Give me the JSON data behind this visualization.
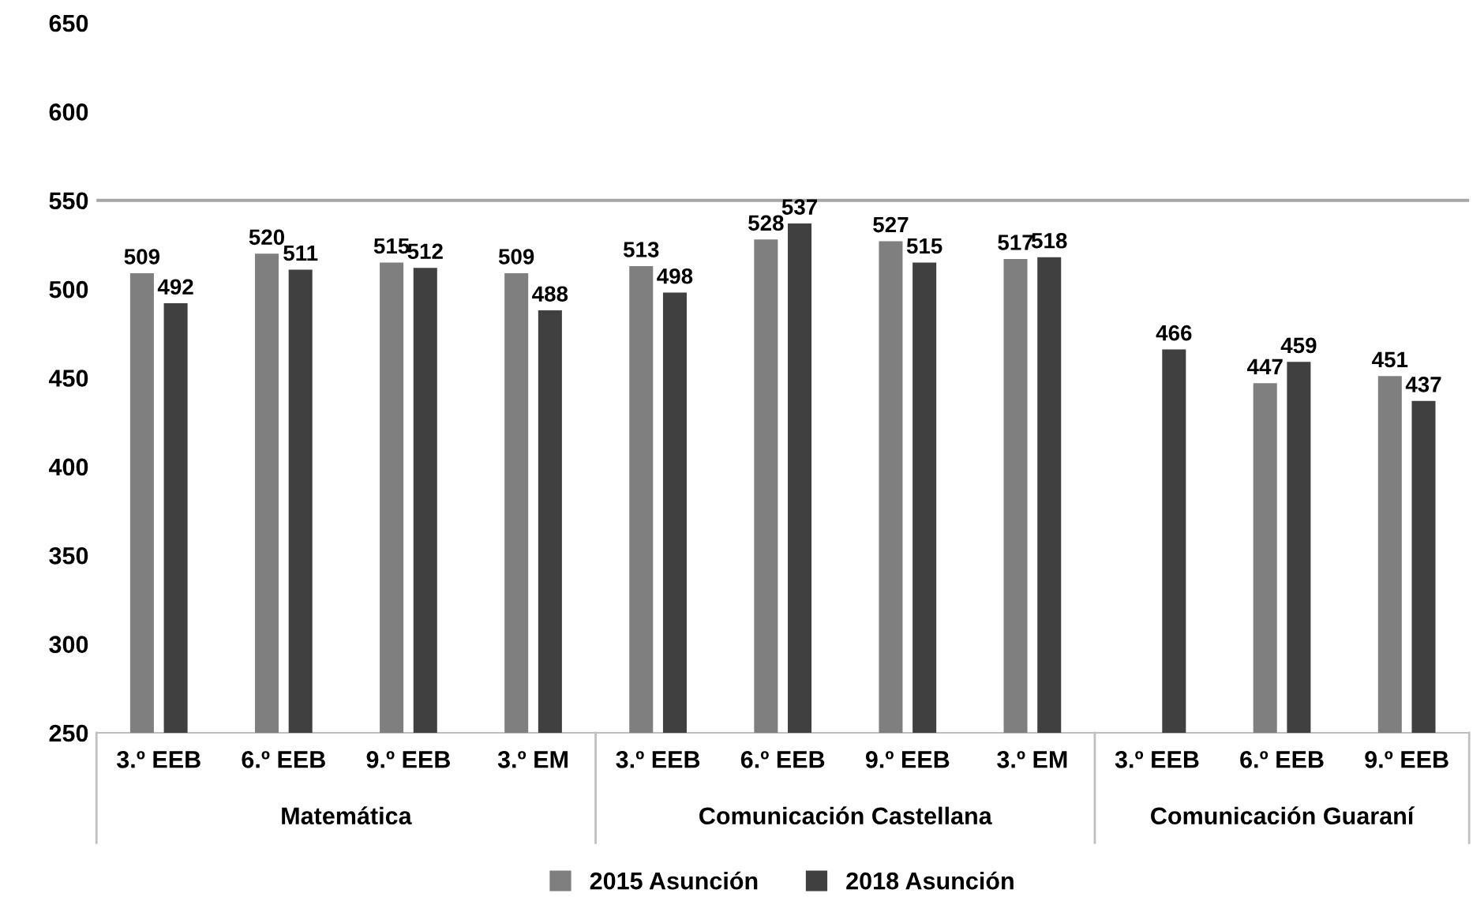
{
  "chart_data": {
    "type": "bar",
    "categories": [
      "3.º EEB",
      "6.º EEB",
      "9.º EEB",
      "3.º EM",
      "3.º EEB",
      "6.º EEB",
      "9.º EEB",
      "3.º EM",
      "3.º EEB",
      "6.º EEB",
      "9.º EEB"
    ],
    "annotations": [
      "Matemática",
      "Comunicación Castellana",
      "Comunicación Guaraní"
    ],
    "series": [
      {
        "name": "2015 Asunción",
        "color": "#7f7f7f",
        "values": [
          509,
          520,
          515,
          509,
          513,
          528,
          527,
          517,
          null,
          447,
          451
        ]
      },
      {
        "name": "2018 Asunción",
        "color": "#404040",
        "values": [
          492,
          511,
          512,
          488,
          498,
          537,
          515,
          518,
          466,
          459,
          437
        ]
      }
    ],
    "ylim": [
      250,
      650
    ],
    "yticks": [
      250,
      300,
      350,
      400,
      450,
      500,
      550,
      600,
      650
    ],
    "ref_lines": [
      {
        "axis": "y",
        "value": 550,
        "color": "#a6a6a6"
      }
    ],
    "data_labels": true,
    "grid": false,
    "legend": "bottom"
  }
}
